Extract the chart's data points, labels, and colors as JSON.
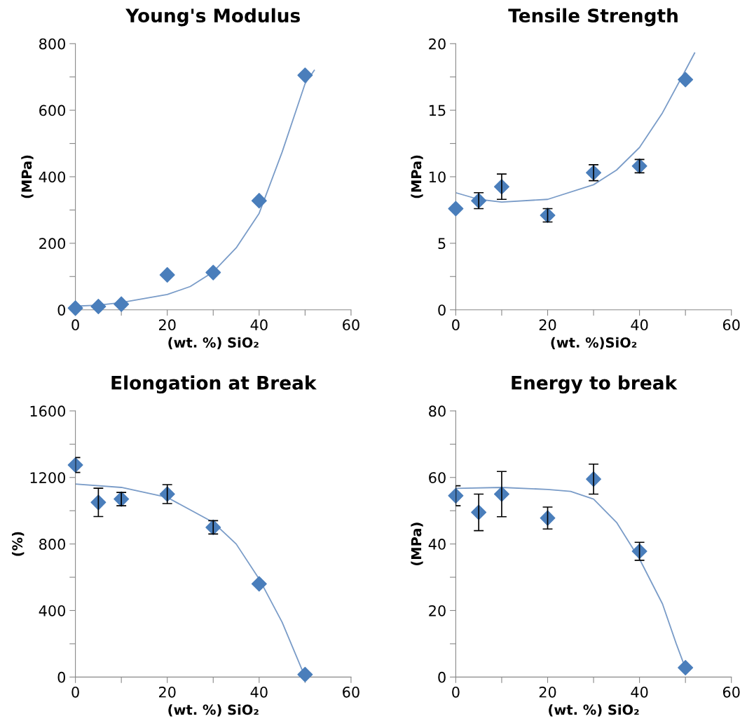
{
  "chart_data": [
    {
      "type": "scatter",
      "title": "Young's Modulus",
      "xlabel": "(wt. %) SiO₂",
      "ylabel": "(MPa)",
      "xlim": [
        0,
        60
      ],
      "ylim": [
        0,
        800
      ],
      "grid": false,
      "marker": "diamond",
      "xticks": [
        0,
        {
          "value": 10,
          "label": null
        },
        20,
        {
          "value": 30,
          "label": null
        },
        40,
        {
          "value": 50,
          "label": null
        },
        60
      ],
      "yticks": [
        0,
        {
          "value": 100,
          "label": null
        },
        200,
        {
          "value": 300,
          "label": null
        },
        400,
        {
          "value": 500,
          "label": null
        },
        600,
        {
          "value": 700,
          "label": null
        },
        800
      ],
      "series": [
        {
          "color": "#4a7ebb",
          "x": [
            0,
            5,
            10,
            20,
            30,
            40,
            50
          ],
          "values": [
            5,
            10,
            17,
            105,
            112,
            328,
            705
          ]
        },
        {
          "type": "line",
          "color": "#7a9cc8",
          "marker": "none",
          "x": [
            0,
            5,
            10,
            20,
            25,
            30,
            35,
            40,
            45,
            50,
            52
          ],
          "values": [
            11,
            14,
            22,
            46,
            70,
            114,
            186,
            290,
            474,
            680,
            720
          ]
        }
      ]
    },
    {
      "type": "scatter",
      "title": "Tensile Strength",
      "xlabel": "(wt. %)SiO₂",
      "ylabel": "(MPa)",
      "xlim": [
        0,
        60
      ],
      "ylim": [
        0,
        20
      ],
      "grid": false,
      "marker": "diamond",
      "xticks": [
        0,
        {
          "value": 10,
          "label": null
        },
        20,
        {
          "value": 30,
          "label": null
        },
        40,
        {
          "value": 50,
          "label": null
        },
        60
      ],
      "yticks": [
        0,
        {
          "value": 2.5,
          "label": null
        },
        5,
        {
          "value": 7.5,
          "label": null
        },
        10,
        {
          "value": 12.5,
          "label": null
        },
        15,
        {
          "value": 17.5,
          "label": null
        },
        20
      ],
      "series": [
        {
          "color": "#4a7ebb",
          "x": [
            0,
            5,
            10,
            20,
            30,
            40,
            50
          ],
          "values": [
            7.6,
            8.2,
            9.25,
            7.1,
            10.3,
            10.8,
            17.3
          ],
          "errors": [
            null,
            0.6,
            0.95,
            0.5,
            0.6,
            0.5,
            null
          ]
        },
        {
          "type": "line",
          "color": "#7a9cc8",
          "marker": "none",
          "x": [
            0,
            5,
            10,
            20,
            30,
            35,
            40,
            45,
            50,
            52
          ],
          "values": [
            8.8,
            8.3,
            8.1,
            8.3,
            9.4,
            10.5,
            12.2,
            14.8,
            18.0,
            19.3
          ]
        }
      ]
    },
    {
      "type": "scatter",
      "title": "Elongation at Break",
      "xlabel": "(wt. %) SiO₂",
      "ylabel": "(%)",
      "xlim": [
        0,
        60
      ],
      "ylim": [
        0,
        1600
      ],
      "grid": false,
      "marker": "diamond",
      "xticks": [
        0,
        {
          "value": 10,
          "label": null
        },
        20,
        {
          "value": 30,
          "label": null
        },
        40,
        {
          "value": 50,
          "label": null
        },
        60
      ],
      "yticks": [
        0,
        {
          "value": 200,
          "label": null
        },
        400,
        {
          "value": 600,
          "label": null
        },
        800,
        {
          "value": 1000,
          "label": null
        },
        1200,
        {
          "value": 1400,
          "label": null
        },
        1600
      ],
      "series": [
        {
          "color": "#4a7ebb",
          "x": [
            0,
            5,
            10,
            20,
            30,
            40,
            50
          ],
          "values": [
            1275,
            1050,
            1070,
            1100,
            900,
            560,
            15
          ],
          "errors": [
            45,
            85,
            40,
            57,
            40,
            null,
            null
          ]
        },
        {
          "type": "line",
          "color": "#7a9cc8",
          "marker": "none",
          "x": [
            0,
            10,
            20,
            30,
            35,
            40,
            45,
            50
          ],
          "values": [
            1160,
            1140,
            1080,
            930,
            800,
            590,
            330,
            0
          ]
        }
      ]
    },
    {
      "type": "scatter",
      "title": "Energy to break",
      "xlabel": "(wt. %) SiO₂",
      "ylabel": "(MPa)",
      "xlim": [
        0,
        60
      ],
      "ylim": [
        0,
        80
      ],
      "grid": false,
      "marker": "diamond",
      "xticks": [
        0,
        {
          "value": 10,
          "label": null
        },
        20,
        {
          "value": 30,
          "label": null
        },
        40,
        {
          "value": 50,
          "label": null
        },
        60
      ],
      "yticks": [
        0,
        {
          "value": 10,
          "label": null
        },
        20,
        {
          "value": 30,
          "label": null
        },
        40,
        {
          "value": 50,
          "label": null
        },
        60,
        {
          "value": 70,
          "label": null
        },
        80
      ],
      "series": [
        {
          "color": "#4a7ebb",
          "x": [
            0,
            5,
            10,
            20,
            30,
            40,
            50
          ],
          "values": [
            54.5,
            49.5,
            55,
            47.8,
            59.5,
            37.8,
            2.8
          ],
          "errors": [
            3,
            5.5,
            6.8,
            3.3,
            4.5,
            2.7,
            null
          ]
        },
        {
          "type": "line",
          "color": "#7a9cc8",
          "marker": "none",
          "x": [
            0,
            10,
            20,
            25,
            30,
            35,
            40,
            45,
            48,
            50
          ],
          "values": [
            56.7,
            57,
            56.4,
            55.8,
            53.5,
            46.5,
            35.5,
            22,
            10,
            2.6
          ]
        }
      ]
    }
  ]
}
